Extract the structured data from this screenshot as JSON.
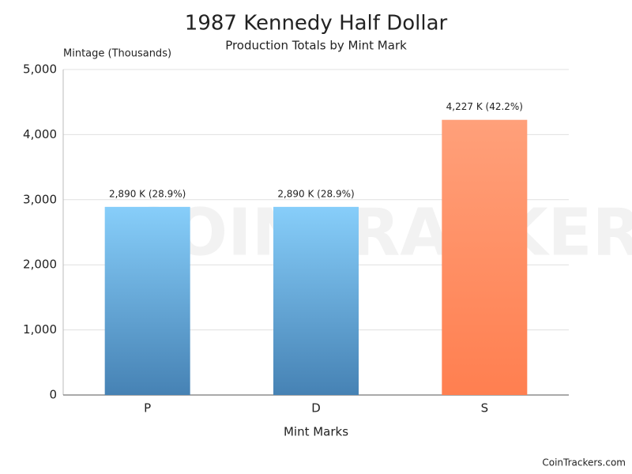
{
  "chart_data": {
    "type": "bar",
    "title": "1987 Kennedy Half Dollar",
    "subtitle": "Production Totals by Mint Mark",
    "y_label": "Mintage (Thousands)",
    "x_label": "Mint Marks",
    "categories": [
      "P",
      "D",
      "S"
    ],
    "values": [
      2890,
      2890,
      4227
    ],
    "value_labels": [
      "2,890 K (28.9%)",
      "2,890 K (28.9%)",
      "4,227 K (42.2%)"
    ],
    "gradients": [
      [
        "#87cefa",
        "#4682b4"
      ],
      [
        "#87cefa",
        "#4682b4"
      ],
      [
        "#ffa07a",
        "#ff7f50"
      ]
    ],
    "ylim": [
      0,
      5000
    ],
    "yticks": [
      0,
      {
        "value": 1000,
        "label": "1,000"
      },
      {
        "value": 2000,
        "label": "2,000"
      },
      {
        "value": 3000,
        "label": "3,000"
      },
      {
        "value": 4000,
        "label": "4,000"
      },
      {
        "value": 5000,
        "label": "5,000"
      }
    ],
    "grid": true,
    "watermark": "COINTRACKERS",
    "credit": "CoinTrackers.com"
  }
}
